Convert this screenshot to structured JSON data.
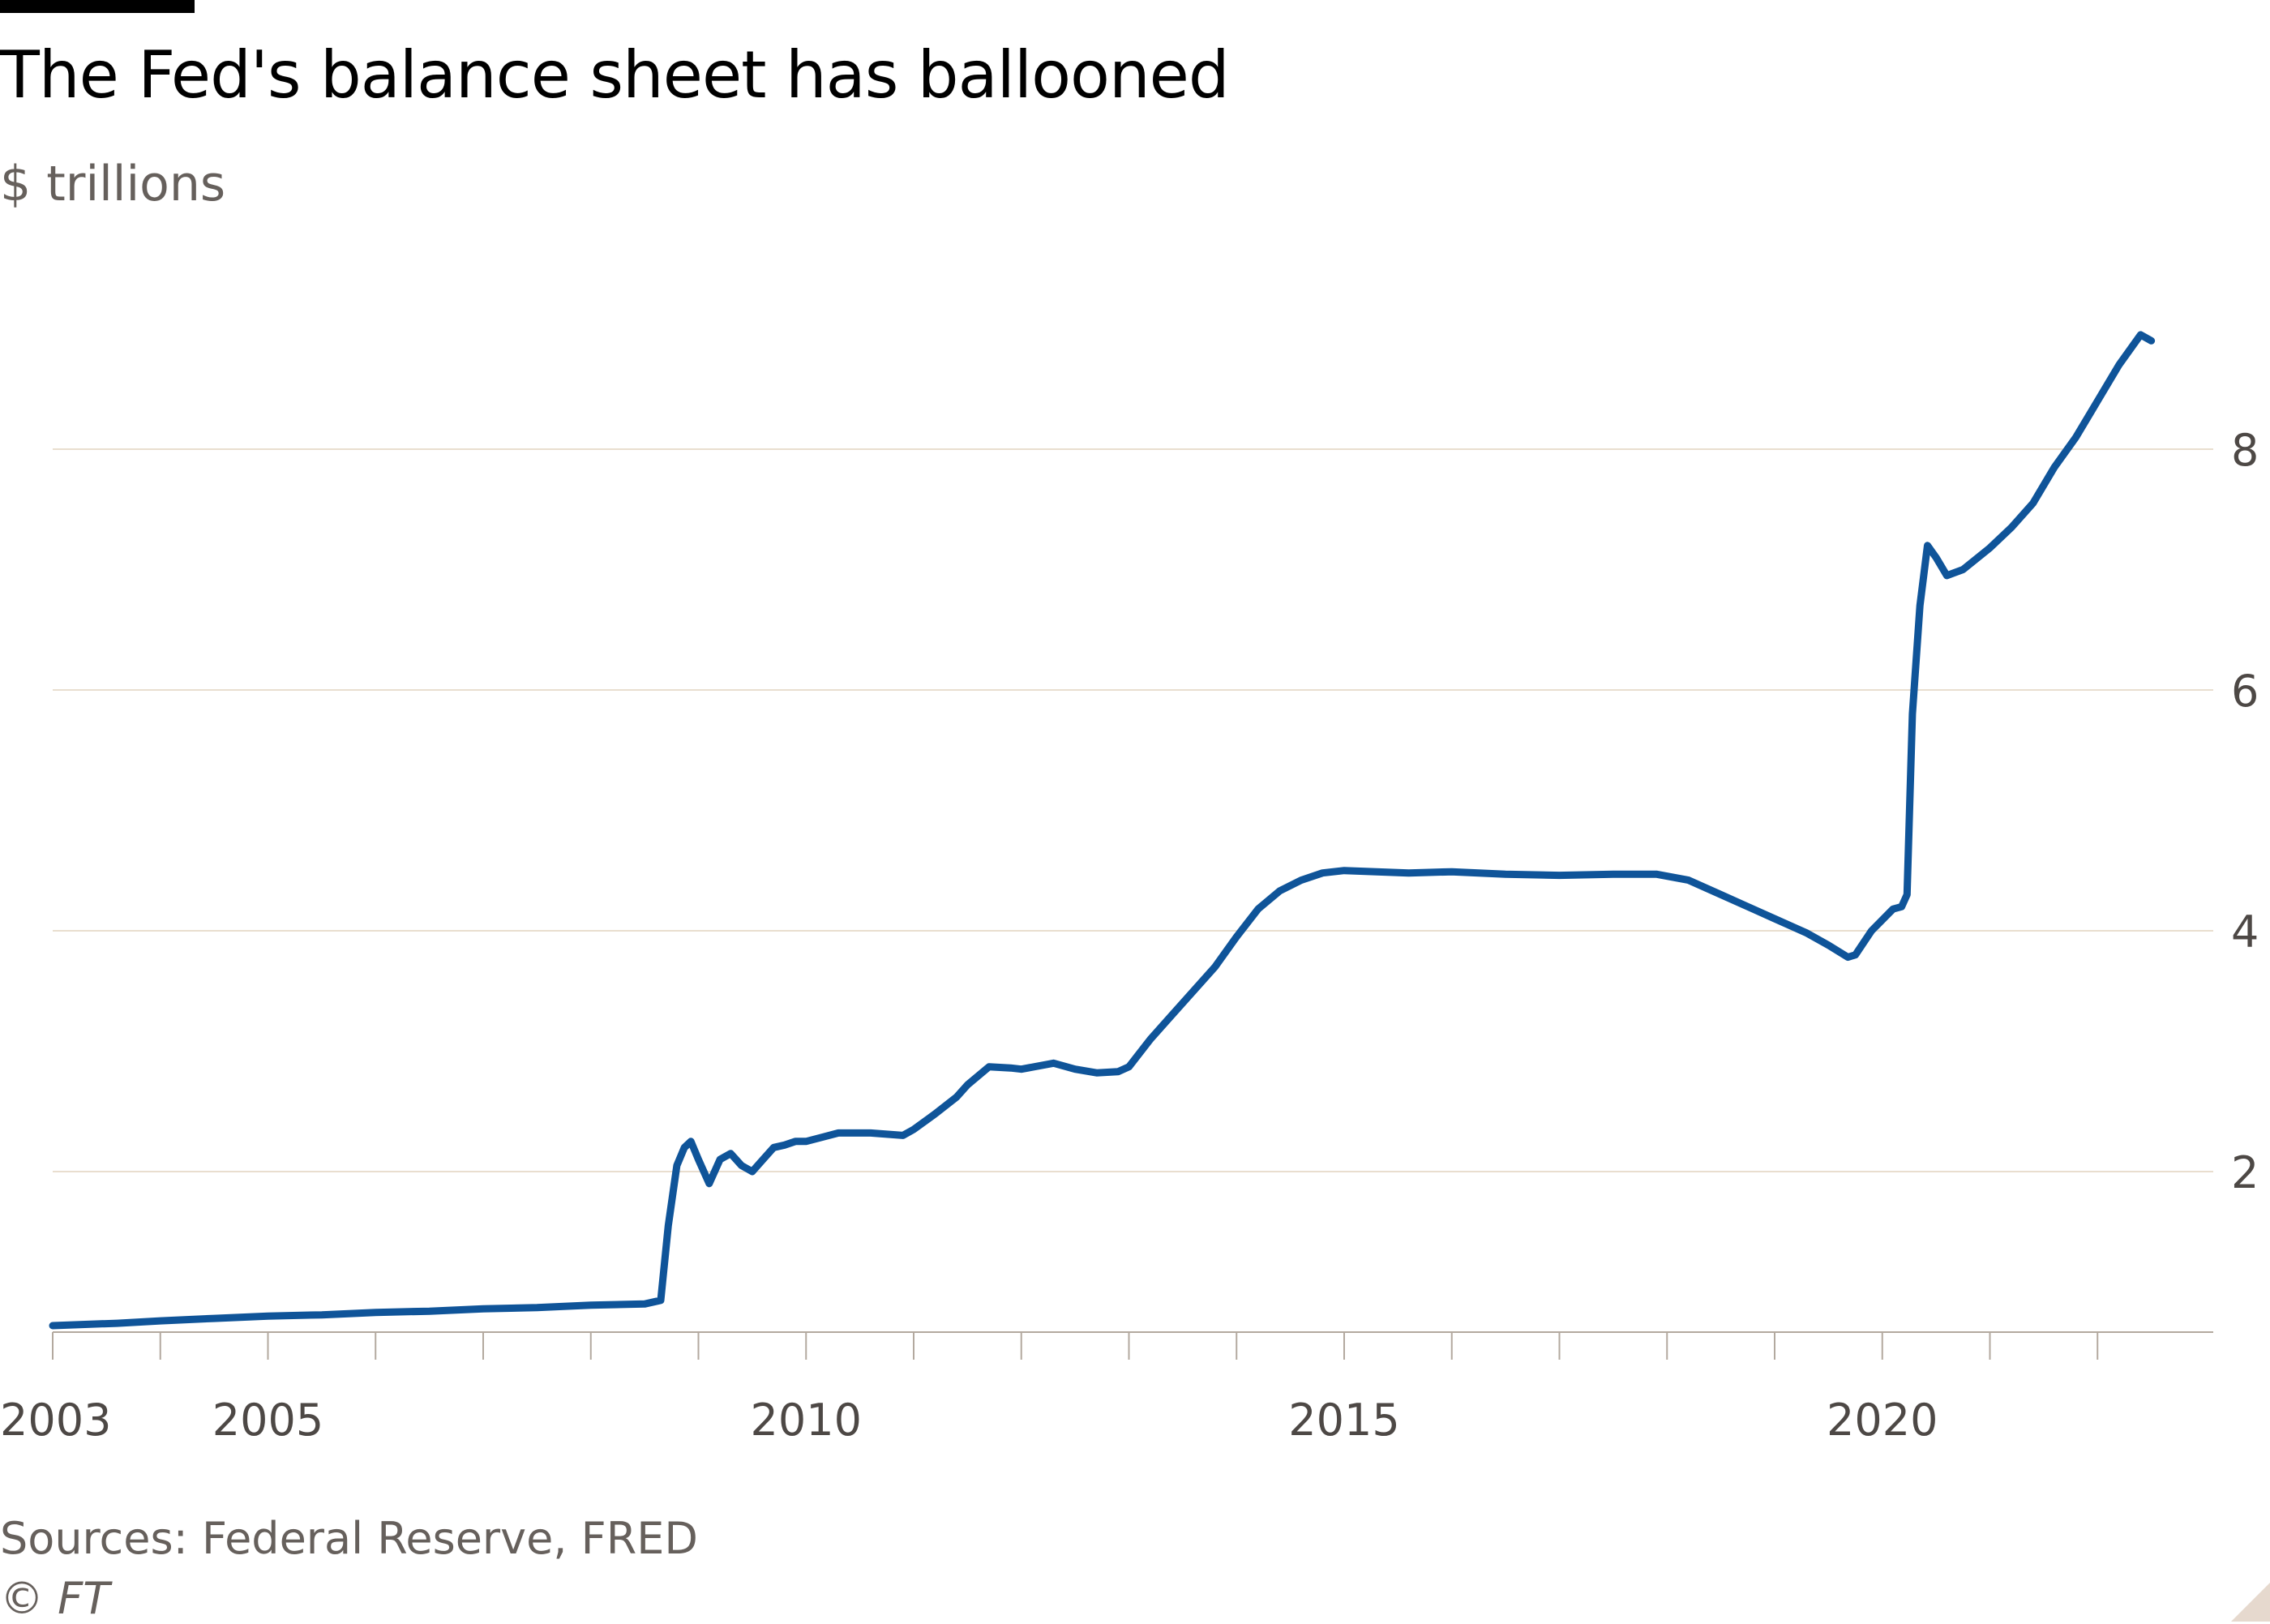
{
  "header": {
    "title": "The Fed's balance sheet has ballooned",
    "subtitle": "$ trillions"
  },
  "footer": {
    "source": "Sources: Federal Reserve, FRED",
    "copyright": "© FT"
  },
  "colors": {
    "line": "#0f5499",
    "gridline": "#e9decf",
    "axis": "#b3a99f",
    "tick_label": "#4d4845",
    "muted_text": "#66605c"
  },
  "chart_data": {
    "type": "line",
    "title": "The Fed's balance sheet has ballooned",
    "ylabel": "$ trillions",
    "xlabel": "",
    "x_ticks_labeled": [
      "2003",
      "2005",
      "2010",
      "2015",
      "2020"
    ],
    "x_ticks_all": [
      2003,
      2004,
      2005,
      2006,
      2007,
      2008,
      2009,
      2010,
      2011,
      2012,
      2013,
      2014,
      2015,
      2016,
      2017,
      2018,
      2019,
      2020,
      2021,
      2022
    ],
    "y_ticks": [
      "2",
      "4",
      "6",
      "8"
    ],
    "xlim": [
      2003,
      2022.6
    ],
    "ylim": [
      0.7,
      9.2
    ],
    "y_axis_side": "right",
    "grid": true,
    "series": [
      {
        "x": [
          2003.0,
          2003.3,
          2003.6,
          2004.0,
          2004.5,
          2005.0,
          2005.5,
          2006.0,
          2006.5,
          2007.0,
          2007.5,
          2008.0,
          2008.5,
          2008.65,
          2008.72,
          2008.8,
          2008.87,
          2008.93,
          2009.0,
          2009.1,
          2009.2,
          2009.3,
          2009.4,
          2009.5,
          2009.6,
          2009.7,
          2009.8,
          2009.9,
          2010.0,
          2010.3,
          2010.6,
          2010.9,
          2011.0,
          2011.2,
          2011.4,
          2011.5,
          2011.7,
          2011.9,
          2012.0,
          2012.3,
          2012.5,
          2012.7,
          2012.9,
          2013.0,
          2013.2,
          2013.4,
          2013.6,
          2013.8,
          2014.0,
          2014.2,
          2014.4,
          2014.6,
          2014.8,
          2015.0,
          2015.3,
          2015.6,
          2016.0,
          2016.5,
          2017.0,
          2017.5,
          2017.9,
          2018.2,
          2018.5,
          2018.8,
          2019.0,
          2019.3,
          2019.5,
          2019.68,
          2019.75,
          2019.9,
          2020.0,
          2020.1,
          2020.18,
          2020.23,
          2020.28,
          2020.35,
          2020.42,
          2020.5,
          2020.6,
          2020.75,
          2021.0,
          2021.2,
          2021.4,
          2021.6,
          2021.8,
          2022.0,
          2022.2,
          2022.4,
          2022.5
        ],
        "y": [
          0.72,
          0.73,
          0.74,
          0.76,
          0.78,
          0.8,
          0.81,
          0.83,
          0.84,
          0.86,
          0.87,
          0.89,
          0.9,
          0.93,
          1.55,
          2.05,
          2.2,
          2.25,
          2.1,
          1.9,
          2.1,
          2.15,
          2.05,
          2.0,
          2.1,
          2.2,
          2.22,
          2.25,
          2.25,
          2.32,
          2.32,
          2.3,
          2.35,
          2.48,
          2.62,
          2.72,
          2.87,
          2.86,
          2.85,
          2.9,
          2.85,
          2.82,
          2.83,
          2.87,
          3.1,
          3.3,
          3.5,
          3.7,
          3.95,
          4.18,
          4.33,
          4.42,
          4.48,
          4.5,
          4.49,
          4.48,
          4.49,
          4.47,
          4.46,
          4.47,
          4.47,
          4.42,
          4.3,
          4.18,
          4.1,
          3.98,
          3.88,
          3.78,
          3.8,
          4.0,
          4.09,
          4.18,
          4.2,
          4.3,
          5.8,
          6.7,
          7.2,
          7.1,
          6.95,
          7.0,
          7.18,
          7.35,
          7.55,
          7.85,
          8.1,
          8.4,
          8.7,
          8.95,
          8.9
        ]
      }
    ]
  }
}
